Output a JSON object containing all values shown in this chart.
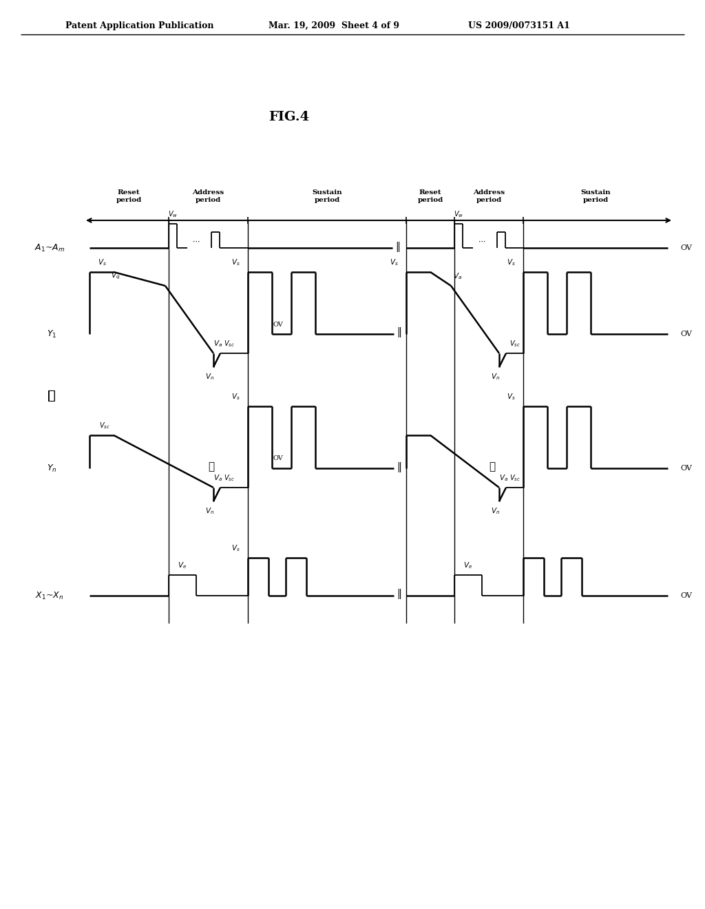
{
  "title": "FIG.4",
  "header_left": "Patent Application Publication",
  "header_mid": "Mar. 19, 2009  Sheet 4 of 9",
  "header_right": "US 2009/0073151 A1",
  "bg_color": "#ffffff"
}
